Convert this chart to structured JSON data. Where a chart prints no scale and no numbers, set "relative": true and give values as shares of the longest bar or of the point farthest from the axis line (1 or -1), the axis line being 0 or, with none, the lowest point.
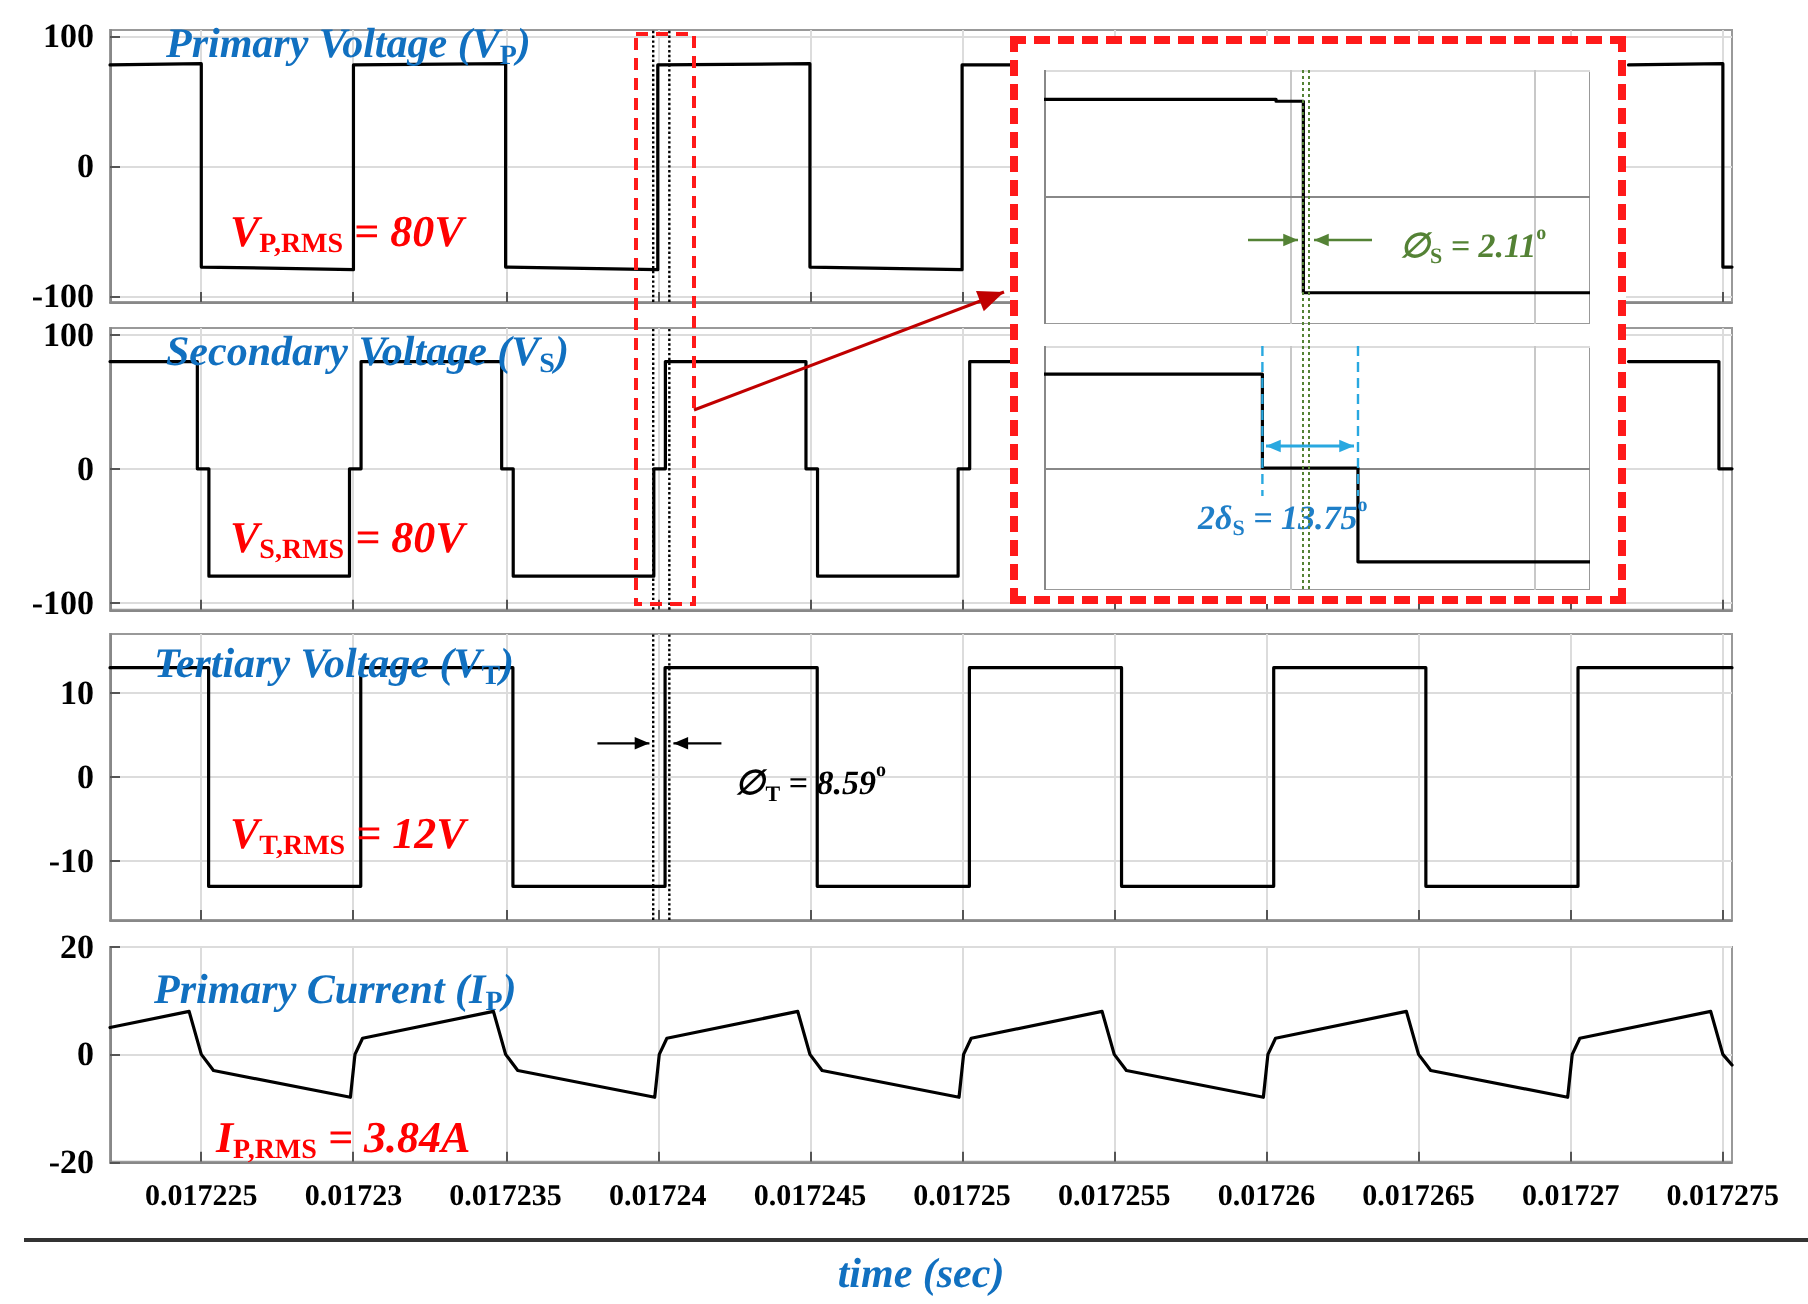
{
  "chart_data": [
    {
      "type": "line",
      "title": "Primary Voltage (V$_{P}$)",
      "annotations": [
        "V$_{P,RMS}$ = 80V"
      ],
      "series": [
        {
          "color": "#000000",
          "x": [
            0.017222,
            0.017225,
            0.017225,
            0.01723,
            0.01723,
            0.017235,
            0.017235,
            0.01724,
            0.01724,
            0.017245,
            0.017245,
            0.01725,
            0.01725,
            0.0172516,
            0.017262,
            0.0172719,
            0.017275,
            0.017275,
            0.0172753
          ],
          "values": [
            78,
            79,
            -78,
            -80,
            78,
            79,
            -78,
            -80,
            78,
            79,
            -78,
            -80,
            78,
            78,
            null,
            78,
            79,
            -78,
            -78
          ]
        }
      ],
      "xlim": [
        0.017222,
        0.0172753
      ],
      "xticks": [
        0.017225,
        0.01723,
        0.017235,
        0.01724,
        0.017245,
        0.01725,
        0.017255,
        0.01726,
        0.017265,
        0.01727,
        0.017275
      ],
      "ylim": [
        -105,
        105
      ],
      "yticks": [
        -100,
        0,
        100
      ],
      "grid": true,
      "tick_labels": "y",
      "ref_lines": [
        {
          "axis": "x",
          "value": 0.01723985,
          "color": "#000000",
          "line_style": "dotted"
        },
        {
          "axis": "x",
          "value": 0.01724038,
          "color": "#000000",
          "line_style": "dotted"
        }
      ]
    },
    {
      "type": "line",
      "title": "Secondary Voltage (V$_{S}$)",
      "annotations": [
        "V$_{S,RMS}$ = 80V"
      ],
      "series": [
        {
          "color": "#000000",
          "x": [
            0.017222,
            0.01722487,
            0.01722487,
            0.01722525,
            0.01722525,
            0.01722987,
            0.01722987,
            0.01723025,
            0.01723025,
            0.01723487,
            0.01723487,
            0.01723525,
            0.01723525,
            0.01723987,
            0.01723987,
            0.01724025,
            0.01724025,
            0.01724487,
            0.01724487,
            0.01724525,
            0.01724525,
            0.01724987,
            0.01724987,
            0.01725025,
            0.01725025,
            0.0172516,
            0.017262,
            0.0172719,
            0.01727487,
            0.01727487,
            0.0172753
          ],
          "values": [
            80,
            80,
            0,
            0,
            -80,
            -80,
            0,
            0,
            80,
            80,
            0,
            0,
            -80,
            -80,
            0,
            0,
            80,
            80,
            0,
            0,
            -80,
            -80,
            0,
            0,
            80,
            80,
            null,
            80,
            80,
            0,
            0
          ]
        }
      ],
      "xlim": [
        0.017222,
        0.0172753
      ],
      "xticks": [
        0.017225,
        0.01723,
        0.017235,
        0.01724,
        0.017245,
        0.01725,
        0.017255,
        0.01726,
        0.017265,
        0.01727,
        0.017275
      ],
      "ylim": [
        -105,
        105
      ],
      "yticks": [
        -100,
        0,
        100
      ],
      "grid": true,
      "tick_labels": "y",
      "ref_lines": [
        {
          "axis": "x",
          "value": 0.01723985,
          "color": "#000000",
          "line_style": "dotted"
        },
        {
          "axis": "x",
          "value": 0.01724038,
          "color": "#000000",
          "line_style": "dotted"
        }
      ]
    },
    {
      "type": "line",
      "title": "Tertiary Voltage (V$_{T}$)",
      "annotations": [
        "V$_{T,RMS}$ = 12V",
        {
          "text": "∅$_{T}$ = 8.59$^{o}$",
          "x": 0.01724012,
          "y": 4
        }
      ],
      "series": [
        {
          "color": "#000000",
          "x": [
            0.017222,
            0.01722524,
            0.01722524,
            0.01723024,
            0.01723024,
            0.01723524,
            0.01723524,
            0.01724024,
            0.01724024,
            0.01724524,
            0.01724524,
            0.01725024,
            0.01725024,
            0.01725524,
            0.01725524,
            0.01726024,
            0.01726024,
            0.01726524,
            0.01726524,
            0.01727024,
            0.01727024,
            0.0172753
          ],
          "values": [
            13,
            13,
            -13,
            -13,
            13,
            13,
            -13,
            -13,
            13,
            13,
            -13,
            -13,
            13,
            13,
            -13,
            -13,
            13,
            13,
            -13,
            -13,
            13,
            13
          ]
        }
      ],
      "xlim": [
        0.017222,
        0.0172753
      ],
      "xticks": [
        0.017225,
        0.01723,
        0.017235,
        0.01724,
        0.017245,
        0.01725,
        0.017255,
        0.01726,
        0.017265,
        0.01727,
        0.017275
      ],
      "ylim": [
        -17,
        17
      ],
      "yticks": [
        -10,
        0,
        10
      ],
      "grid": true,
      "tick_labels": "y",
      "ref_lines": [
        {
          "axis": "x",
          "value": 0.01723985,
          "color": "#000000",
          "line_style": "dotted"
        },
        {
          "axis": "x",
          "value": 0.01724038,
          "color": "#000000",
          "line_style": "dotted"
        }
      ]
    },
    {
      "type": "line",
      "title": "Primary Current (I$_{P}$)",
      "xlabel": "time (sec)",
      "annotations": [
        "I$_{P,RMS}$ = 3.84A"
      ],
      "series": [
        {
          "color": "#000000",
          "x": [
            0.017222,
            0.0172246,
            0.017225,
            0.0172254,
            0.0172299,
            0.01723005,
            0.0172303,
            0.0172346,
            0.017235,
            0.0172354,
            0.0172399,
            0.01724005,
            0.0172403,
            0.0172446,
            0.017245,
            0.0172454,
            0.0172499,
            0.01725005,
            0.0172503,
            0.0172546,
            0.017255,
            0.0172554,
            0.0172599,
            0.01726005,
            0.0172603,
            0.0172646,
            0.017265,
            0.0172654,
            0.0172699,
            0.01727005,
            0.0172703,
            0.0172746,
            0.017275,
            0.0172753
          ],
          "values": [
            5,
            8,
            0,
            -3,
            -8,
            0,
            3,
            8,
            0,
            -3,
            -8,
            0,
            3,
            8,
            0,
            -3,
            -8,
            0,
            3,
            8,
            0,
            -3,
            -8,
            0,
            3,
            8,
            0,
            -3,
            -8,
            0,
            3,
            8,
            0,
            -2
          ]
        }
      ],
      "xlim": [
        0.017222,
        0.0172753
      ],
      "xticks": [
        0.017225,
        0.01723,
        0.017235,
        0.01724,
        0.017245,
        0.01725,
        0.017255,
        0.01726,
        0.017265,
        0.01727,
        0.017275
      ],
      "ylim": [
        -20,
        20
      ],
      "yticks": [
        -20,
        0,
        20
      ],
      "grid": true
    },
    {
      "type": "step",
      "relative": true,
      "annotations": [
        "∅$_{S}$ = 2.11$^{o}$"
      ],
      "categories": [
        null,
        null,
        null,
        null,
        null,
        null,
        null,
        null,
        null,
        null,
        null,
        null,
        null,
        null,
        null,
        null,
        null,
        null,
        null,
        null,
        null,
        null,
        null,
        null,
        null,
        null,
        null,
        null,
        null,
        null,
        null,
        null,
        null,
        null,
        null,
        null,
        null,
        null,
        null,
        null,
        null
      ],
      "series": [
        {
          "color": "#000000",
          "values": [
            1,
            1,
            1,
            1,
            1,
            1,
            1,
            1,
            1,
            1,
            1,
            1,
            1,
            1,
            1,
            1,
            1,
            0.98,
            0.98,
            -0.98,
            -0.98,
            -0.98,
            -0.98,
            -0.98,
            -0.98,
            -0.98,
            -0.98,
            -0.98,
            -0.98,
            -0.98,
            -0.98,
            -0.98,
            -0.98,
            -0.98,
            -0.98,
            -0.98,
            -0.98,
            -0.98,
            -0.98,
            -0.98,
            -0.98
          ]
        }
      ],
      "grid": true,
      "tick_labels": false
    },
    {
      "type": "step",
      "relative": true,
      "annotations": [
        "2δ$_{S}$ = 13.75$^{o}$"
      ],
      "categories": [
        null,
        null,
        null,
        null,
        null,
        null,
        null,
        null,
        null,
        null,
        null,
        null,
        null,
        null,
        null,
        null,
        null,
        null,
        null,
        null,
        null,
        null,
        null,
        null,
        null,
        null,
        null,
        null,
        null,
        null,
        null,
        null,
        null,
        null,
        null,
        null,
        null,
        null,
        null,
        null,
        null
      ],
      "series": [
        {
          "color": "#000000",
          "values": [
            1,
            1,
            1,
            1,
            1,
            1,
            1,
            1,
            1,
            1,
            1,
            1,
            1,
            1,
            1,
            1,
            0,
            0,
            0,
            0,
            0,
            0,
            0,
            -1,
            -1,
            -1,
            -1,
            -1,
            -1,
            -1,
            -1,
            -1,
            -1,
            -1,
            -1,
            -1,
            -1,
            -1,
            -1,
            -1,
            -1
          ]
        }
      ],
      "grid": true,
      "tick_labels": false
    }
  ]
}
